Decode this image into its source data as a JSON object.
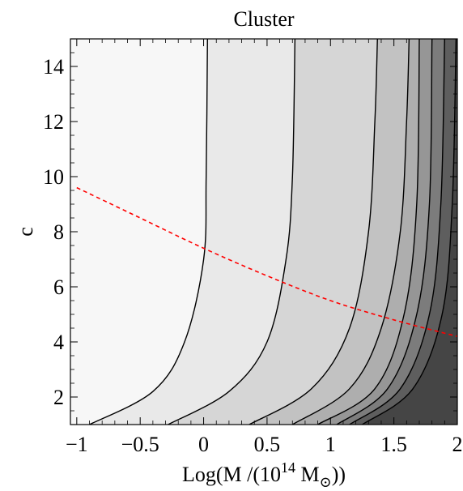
{
  "chart_data": {
    "type": "contour",
    "title": "Cluster",
    "xlabel": {
      "prefix": "Log(M /(10",
      "exponent": "14",
      "middle": " M",
      "subscript": "⊙",
      "suffix": "))"
    },
    "ylabel": "c",
    "xlim": [
      -1.05,
      2.0
    ],
    "ylim": [
      1.0,
      15.0
    ],
    "xticks": [
      -1,
      -0.5,
      0,
      0.5,
      1,
      1.5,
      2
    ],
    "xtick_labels": [
      "−1",
      "−0.5",
      "0",
      "0.5",
      "1",
      "1.5",
      "2"
    ],
    "yticks": [
      2,
      4,
      6,
      8,
      10,
      12,
      14
    ],
    "ytick_labels": [
      "2",
      "4",
      "6",
      "8",
      "10",
      "12",
      "14"
    ],
    "contours": [
      {
        "points": [
          [
            -0.9,
            1.0
          ],
          [
            -0.4,
            2.2
          ],
          [
            -0.15,
            4.0
          ],
          [
            0.0,
            7.0
          ],
          [
            0.02,
            10.0
          ],
          [
            0.03,
            15.0
          ]
        ]
      },
      {
        "points": [
          [
            -0.28,
            1.0
          ],
          [
            0.2,
            2.2
          ],
          [
            0.5,
            4.0
          ],
          [
            0.65,
            7.0
          ],
          [
            0.7,
            10.0
          ],
          [
            0.72,
            15.0
          ]
        ]
      },
      {
        "points": [
          [
            0.36,
            1.0
          ],
          [
            0.85,
            2.3
          ],
          [
            1.15,
            4.5
          ],
          [
            1.3,
            8.0
          ],
          [
            1.35,
            12.0
          ],
          [
            1.37,
            15.0
          ]
        ]
      },
      {
        "points": [
          [
            0.7,
            1.0
          ],
          [
            1.15,
            2.3
          ],
          [
            1.4,
            4.5
          ],
          [
            1.55,
            8.0
          ],
          [
            1.6,
            12.0
          ],
          [
            1.62,
            15.0
          ]
        ]
      },
      {
        "points": [
          [
            0.9,
            1.0
          ],
          [
            1.35,
            2.3
          ],
          [
            1.58,
            5.0
          ],
          [
            1.68,
            9.0
          ],
          [
            1.7,
            15.0
          ]
        ]
      },
      {
        "points": [
          [
            1.05,
            1.0
          ],
          [
            1.45,
            2.3
          ],
          [
            1.68,
            5.0
          ],
          [
            1.78,
            9.0
          ],
          [
            1.8,
            15.0
          ]
        ]
      },
      {
        "points": [
          [
            1.15,
            1.0
          ],
          [
            1.55,
            2.3
          ],
          [
            1.78,
            5.0
          ],
          [
            1.87,
            9.0
          ],
          [
            1.9,
            15.0
          ]
        ]
      },
      {
        "points": [
          [
            1.25,
            1.0
          ],
          [
            1.65,
            2.3
          ],
          [
            1.88,
            5.0
          ],
          [
            1.96,
            9.0
          ],
          [
            1.99,
            15.0
          ]
        ]
      }
    ],
    "fills": [
      "#f7f7f7",
      "#e9e9e9",
      "#d6d6d6",
      "#c2c2c2",
      "#aeaeae",
      "#969696",
      "#7c7c7c",
      "#5e5e5e",
      "#454545"
    ],
    "dashed_curve": {
      "color": "#ff0000",
      "x": [
        -1.0,
        -0.5,
        0.0,
        0.5,
        1.0,
        1.5,
        2.0
      ],
      "y": [
        9.6,
        8.5,
        7.4,
        6.4,
        5.5,
        4.8,
        4.2
      ]
    }
  }
}
